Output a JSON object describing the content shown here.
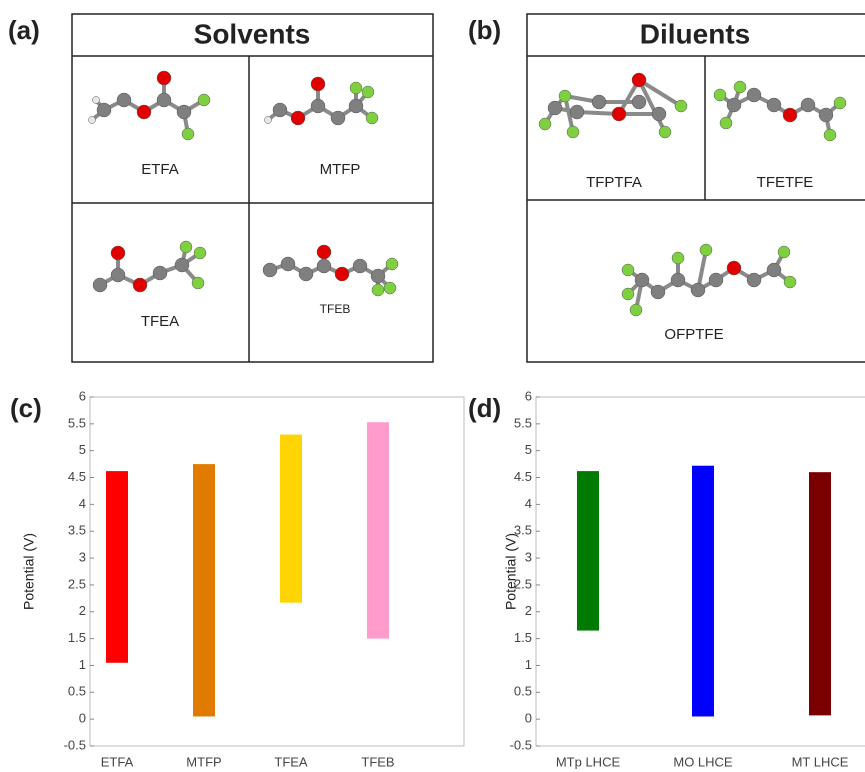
{
  "panels": [
    {
      "label": "(a)",
      "title": "Solvents",
      "molecules": [
        "ETFA",
        "MTFP",
        "TFEA",
        "TFEB"
      ]
    },
    {
      "label": "(b)",
      "title": "Diluents",
      "molecules": [
        "TFPTFA",
        "TFETFE",
        "OFPTFE"
      ]
    }
  ],
  "chart_data": [
    {
      "type": "floating-bar",
      "label": "(c)",
      "y_label": "Potential (V)",
      "categories": [
        "ETFA",
        "MTFP",
        "TFEA",
        "TFEB"
      ],
      "low": [
        1.05,
        0.05,
        2.17,
        1.5
      ],
      "high": [
        4.62,
        4.75,
        5.3,
        5.53
      ],
      "colors": [
        "#ff0000",
        "#e07b00",
        "#ffd400",
        "#ff9ccb"
      ],
      "ylim": [
        -0.5,
        6
      ],
      "yticks": [
        -0.5,
        0,
        0.5,
        1,
        1.5,
        2,
        2.5,
        3,
        3.5,
        4,
        4.5,
        5,
        5.5,
        6
      ]
    },
    {
      "type": "floating-bar",
      "label": "(d)",
      "y_label": "Potential (V)",
      "categories": [
        "MTp LHCE",
        "MO LHCE",
        "MT LHCE"
      ],
      "low": [
        1.65,
        0.05,
        0.07
      ],
      "high": [
        4.62,
        4.72,
        4.6
      ],
      "colors": [
        "#007a00",
        "#0000ff",
        "#7a0000"
      ],
      "ylim": [
        -0.5,
        6
      ],
      "yticks": [
        -0.5,
        0,
        0.5,
        1,
        1.5,
        2,
        2.5,
        3,
        3.5,
        4,
        4.5,
        5,
        5.5,
        6
      ]
    }
  ]
}
